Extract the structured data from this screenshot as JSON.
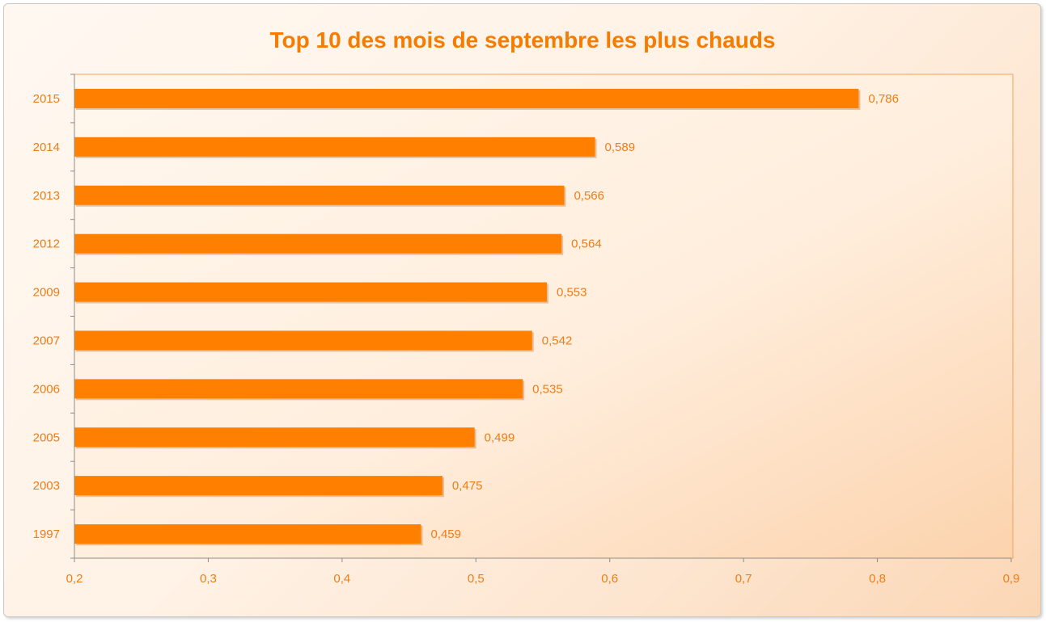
{
  "colors": {
    "bar": "#ff7f00",
    "bar_shadow": "#b8651a",
    "text": "#ef7d16",
    "title": "#f57c00",
    "axis": "#8c8c8c",
    "plot_border": "#f2a25a"
  },
  "chart_data": {
    "type": "bar",
    "orientation": "horizontal",
    "title": "Top 10 des mois de septembre les plus chauds",
    "xlabel": "",
    "ylabel": "",
    "categories": [
      "2015",
      "2014",
      "2013",
      "2012",
      "2009",
      "2007",
      "2006",
      "2005",
      "2003",
      "1997"
    ],
    "values": [
      0.786,
      0.589,
      0.566,
      0.564,
      0.553,
      0.542,
      0.535,
      0.499,
      0.475,
      0.459
    ],
    "value_labels": [
      "0,786",
      "0,589",
      "0,566",
      "0,564",
      "0,553",
      "0,542",
      "0,535",
      "0,499",
      "0,475",
      "0,459"
    ],
    "xlim": [
      0.2,
      0.9
    ],
    "x_ticks": [
      0.2,
      0.3,
      0.4,
      0.5,
      0.6,
      0.7,
      0.8,
      0.9
    ],
    "x_tick_labels": [
      "0,2",
      "0,3",
      "0,4",
      "0,5",
      "0,6",
      "0,7",
      "0,8",
      "0,9"
    ],
    "grid": false,
    "legend": "none"
  }
}
